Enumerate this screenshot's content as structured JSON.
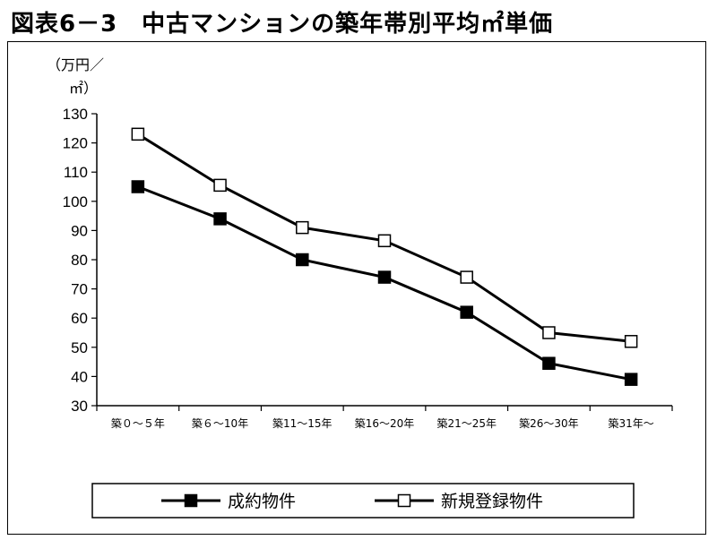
{
  "title": "図表6－3　中古マンションの築年帯別平均㎡単価",
  "chart_data": {
    "type": "line",
    "ylabel_line1": "（万円／",
    "ylabel_line2": "㎡）",
    "ylim": [
      30,
      130
    ],
    "yticks": [
      130,
      120,
      110,
      100,
      90,
      80,
      70,
      60,
      50,
      40,
      30
    ],
    "categories": [
      "築０～５年",
      "築６～10年",
      "築11～15年",
      "築16～20年",
      "築21～25年",
      "築26～30年",
      "築31年～"
    ],
    "series": [
      {
        "name": "成約物件",
        "marker": "filled-square",
        "values": [
          105,
          94,
          80,
          74,
          62,
          44.5,
          39
        ]
      },
      {
        "name": "新規登録物件",
        "marker": "open-square",
        "values": [
          123,
          105.5,
          91,
          86.5,
          74,
          55,
          52
        ]
      }
    ],
    "grid": false,
    "legend_position": "bottom"
  }
}
